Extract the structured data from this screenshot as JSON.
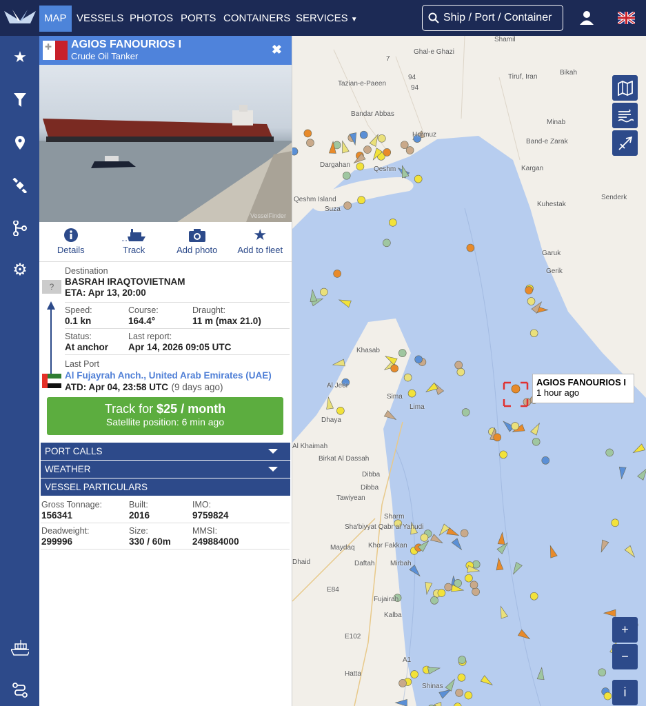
{
  "nav": {
    "items": [
      "MAP",
      "VESSELS",
      "PHOTOS",
      "PORTS",
      "CONTAINERS",
      "SERVICES"
    ],
    "active": "MAP",
    "search_placeholder": "Ship / Port / Container"
  },
  "sidebar": {
    "icons": [
      "star-icon",
      "filter-icon",
      "location-pin-icon",
      "satellite-icon",
      "route-icon",
      "gear-icon",
      "container-ship-icon",
      "path-icon"
    ]
  },
  "vessel": {
    "name": "AGIOS FANOURIOS I",
    "type": "Crude Oil Tanker",
    "flag": "Malta",
    "actions": [
      "Details",
      "Track",
      "Add photo",
      "Add to fleet"
    ],
    "destination_label": "Destination",
    "destination": "BASRAH IRAQTOVIETNAM",
    "eta": "ETA: Apr 13, 20:00",
    "unknown_port": "?",
    "speed_label": "Speed:",
    "speed": "0.1 kn",
    "course_label": "Course:",
    "course": "164.4°",
    "draught_label": "Draught:",
    "draught": "11 m (max 21.0)",
    "status_label": "Status:",
    "status": "At anchor",
    "last_report_label": "Last report:",
    "last_report": "Apr 14, 2026 09:05 UTC",
    "last_port_label": "Last Port",
    "last_port": "Al Fujayrah Anch., United Arab Emirates (UAE)",
    "atd": "ATD: Apr 04, 23:58 UTC",
    "atd_ago": "(9 days ago)",
    "track_prefix": "Track for ",
    "track_price": "$25 / month",
    "track_sub": "Satellite position: 6 min ago",
    "sections": [
      "PORT CALLS",
      "WEATHER",
      "VESSEL PARTICULARS"
    ],
    "particulars": {
      "gt_label": "Gross Tonnage:",
      "gt": "156341",
      "built_label": "Built:",
      "built": "2016",
      "imo_label": "IMO:",
      "imo": "9759824",
      "dwt_label": "Deadweight:",
      "dwt": "299996",
      "size_label": "Size:",
      "size": "330 / 60m",
      "mmsi_label": "MMSI:",
      "mmsi": "249884000"
    },
    "photo_watermark": "VesselFinder"
  },
  "map": {
    "tooltip_name": "AGIOS FANOURIOS I",
    "tooltip_time": "1 hour ago",
    "labels": [
      "Shamil",
      "Ghal-e Ghazi",
      "Tazian-e-Paeen",
      "Bandar Abbas",
      "Hormuz",
      "Tiruf, Iran",
      "Bikah",
      "Minab",
      "Band-e Zarak",
      "Kargan",
      "Kuhestak",
      "Senderk",
      "Garuk",
      "Gerik",
      "Dargahan",
      "Qeshm",
      "Qeshm Island",
      "Suza",
      "Khasab",
      "Al Jeer",
      "Sima",
      "Lima",
      "Dhaya",
      "Al Khaimah",
      "Birkat Al Dassah",
      "Dibba",
      "Dibba",
      "Tawiyean",
      "Sharm",
      "Sha'biyyat Qabr al Yahudi",
      "Maydaq",
      "Khor Fakkan",
      "Daftah",
      "Mirbah",
      "Fujairah",
      "Kalba",
      "Hatta",
      "Shinas",
      "Dhaid",
      "E84",
      "E102",
      "A1",
      "7",
      "94",
      "94"
    ],
    "zoom_in": "+",
    "zoom_out": "−",
    "info": "i",
    "colors": {
      "water": "#b7cdef",
      "land": "#f2efe9",
      "selected": "#e03030"
    }
  }
}
